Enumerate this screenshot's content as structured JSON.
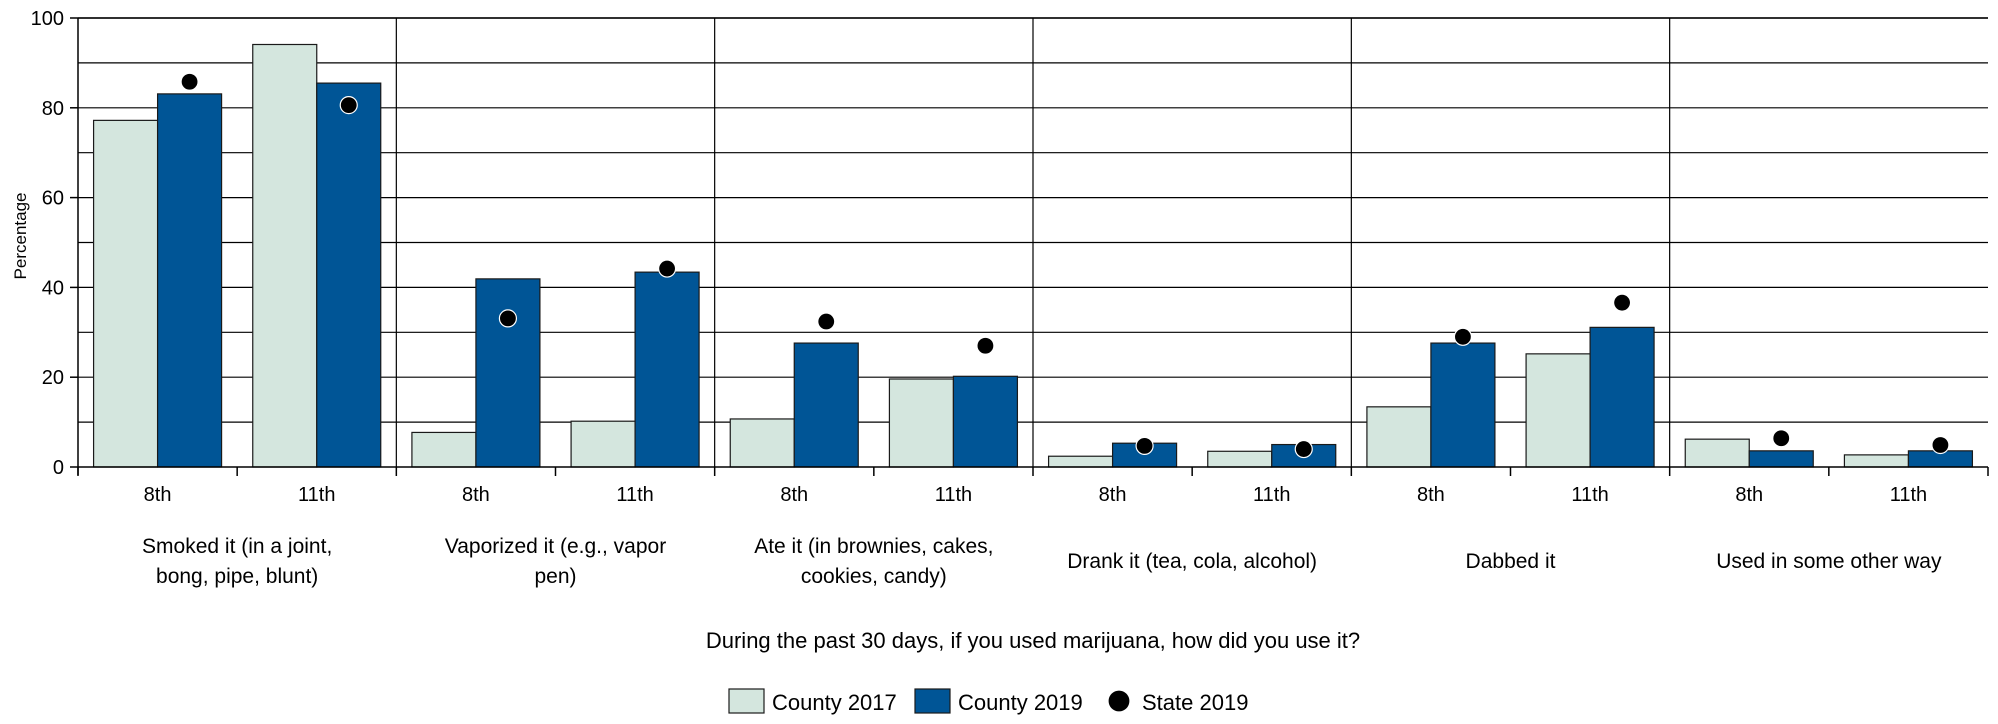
{
  "chart_data": {
    "type": "bar",
    "xlabel": "During the past 30 days, if you used marijuana, how did you use it?",
    "ylabel": "Percentage",
    "ylim": [
      0,
      100
    ],
    "yticks": [
      0,
      20,
      40,
      60,
      80,
      100
    ],
    "grid": true,
    "legend_position": "bottom-center",
    "groups": [
      {
        "label_lines": [
          "Smoked it (in a joint,",
          "bong, pipe, blunt)"
        ],
        "subcategories": [
          "8th",
          "11th"
        ]
      },
      {
        "label_lines": [
          "Vaporized it (e.g., vapor",
          "pen)"
        ],
        "subcategories": [
          "8th",
          "11th"
        ]
      },
      {
        "label_lines": [
          "Ate it (in brownies, cakes,",
          "cookies, candy)"
        ],
        "subcategories": [
          "8th",
          "11th"
        ]
      },
      {
        "label_lines": [
          "Drank it (tea, cola, alcohol)"
        ],
        "subcategories": [
          "8th",
          "11th"
        ]
      },
      {
        "label_lines": [
          "Dabbed it"
        ],
        "subcategories": [
          "8th",
          "11th"
        ]
      },
      {
        "label_lines": [
          "Used in some other way"
        ],
        "subcategories": [
          "8th",
          "11th"
        ]
      }
    ],
    "series": [
      {
        "name": "County 2017",
        "kind": "bar",
        "color": "#d4e6de",
        "values": [
          77.2,
          94.1,
          7.7,
          10.2,
          10.7,
          19.6,
          2.4,
          3.5,
          13.4,
          25.2,
          6.2,
          2.7
        ]
      },
      {
        "name": "County 2019",
        "kind": "bar",
        "color": "#005596",
        "values": [
          83.1,
          85.5,
          41.9,
          43.4,
          27.6,
          20.2,
          5.3,
          5.0,
          27.6,
          31.1,
          3.6,
          3.6
        ]
      },
      {
        "name": "State 2019",
        "kind": "point",
        "color": "#000000",
        "values": [
          85.8,
          80.6,
          33.1,
          44.2,
          32.4,
          27.0,
          4.7,
          4.0,
          29.0,
          36.6,
          6.4,
          4.9
        ]
      }
    ]
  }
}
